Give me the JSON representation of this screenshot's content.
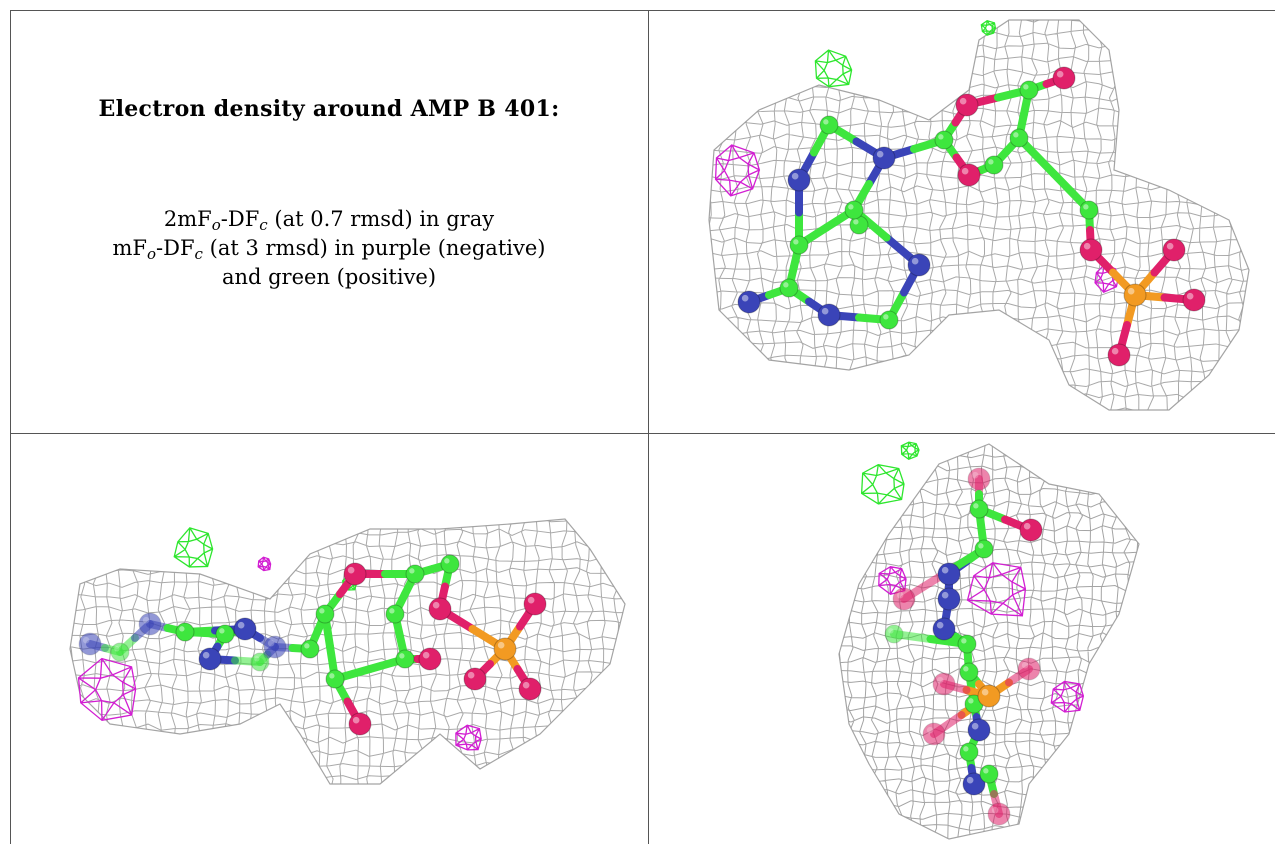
{
  "figure": {
    "title": "Electron density around AMP B 401:",
    "legend_line1": {
      "pre": "2mF",
      "sub1": "o",
      "mid": "-DF",
      "sub2": "c",
      "post": " (at 0.7 rmsd) in gray"
    },
    "legend_line2": {
      "pre": "mF",
      "sub1": "o",
      "mid": "-DF",
      "sub2": "c",
      "post": " (at 3 rmsd) in purple (negative)"
    },
    "legend_line3": "and green (positive)"
  },
  "colors": {
    "map_2fofc": "#9a9a9a",
    "map_negative": "#d21ed2",
    "map_positive": "#2ee62e",
    "carbon": "#3ee63e",
    "nitrogen": "#3a44b8",
    "oxygen": "#e0206a",
    "phosphorus": "#f29a22",
    "frame": "#555555"
  },
  "views": [
    {
      "name": "view-top-right"
    },
    {
      "name": "view-bottom-left"
    },
    {
      "name": "view-bottom-right"
    }
  ]
}
